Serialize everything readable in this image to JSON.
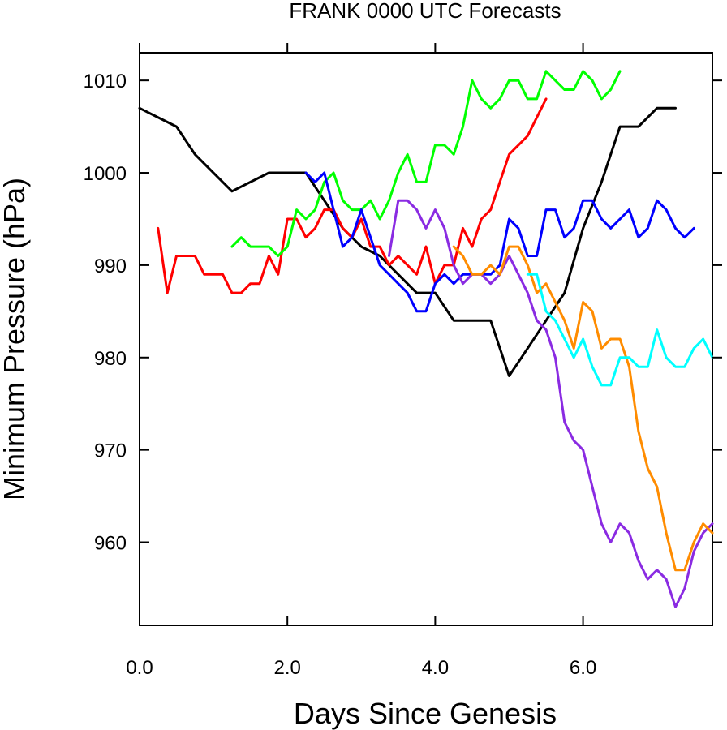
{
  "chart_data": {
    "type": "line",
    "title": "FRANK 0000 UTC Forecasts",
    "xlabel": "Days Since Genesis",
    "ylabel": "Minimum Pressure (hPa)",
    "xlim": [
      0,
      7.75
    ],
    "ylim": [
      951,
      1013
    ],
    "xticks": [
      0,
      2,
      4,
      6
    ],
    "xtick_labels": [
      "0.0",
      "2.0",
      "4.0",
      "6.0"
    ],
    "yticks": [
      960,
      970,
      980,
      990,
      1000,
      1010
    ],
    "ytick_labels": [
      "960",
      "970",
      "980",
      "990",
      "1000",
      "1010"
    ],
    "grid": false,
    "series": [
      {
        "name": "black",
        "color": "#000000",
        "x": [
          0,
          0.5,
          0.75,
          1.25,
          1.75,
          2.0,
          2.25,
          2.5,
          2.75,
          3.0,
          3.25,
          3.5,
          3.75,
          4.0,
          4.25,
          4.5,
          4.75,
          5.0,
          5.25,
          5.5,
          5.75,
          6.0,
          6.25,
          6.5,
          6.75,
          7.0,
          7.25
        ],
        "values": [
          1007,
          1005,
          1002,
          998,
          1000,
          1000,
          1000,
          997,
          994,
          992,
          991,
          989,
          987,
          987,
          984,
          984,
          984,
          978,
          981,
          984,
          987,
          994,
          999,
          1005,
          1005,
          1007,
          1007
        ]
      },
      {
        "name": "red",
        "color": "#ff0000",
        "x": [
          0.25,
          0.375,
          0.5,
          0.625,
          0.75,
          0.875,
          1.0,
          1.125,
          1.25,
          1.375,
          1.5,
          1.625,
          1.75,
          1.875,
          2.0,
          2.125,
          2.25,
          2.375,
          2.5,
          2.625,
          2.75,
          2.875,
          3.0,
          3.125,
          3.25,
          3.375,
          3.5,
          3.625,
          3.75,
          3.875,
          4.0,
          4.125,
          4.25,
          4.375,
          4.5,
          4.625,
          4.75,
          4.875,
          5.0,
          5.125,
          5.25,
          5.375,
          5.5
        ],
        "values": [
          994,
          987,
          991,
          991,
          991,
          989,
          989,
          989,
          987,
          987,
          988,
          988,
          991,
          989,
          995,
          995,
          993,
          994,
          996,
          996,
          994,
          993,
          995,
          992,
          992,
          990,
          991,
          990,
          989,
          992,
          988,
          990,
          990,
          994,
          992,
          995,
          996,
          999,
          1002,
          1003,
          1004,
          1006,
          1008
        ]
      },
      {
        "name": "green",
        "color": "#00ff00",
        "x": [
          1.25,
          1.375,
          1.5,
          1.625,
          1.75,
          1.875,
          2.0,
          2.125,
          2.25,
          2.375,
          2.5,
          2.625,
          2.75,
          2.875,
          3.0,
          3.125,
          3.25,
          3.375,
          3.5,
          3.625,
          3.75,
          3.875,
          4.0,
          4.125,
          4.25,
          4.375,
          4.5,
          4.625,
          4.75,
          4.875,
          5.0,
          5.125,
          5.25,
          5.375,
          5.5,
          5.625,
          5.75,
          5.875,
          6.0,
          6.125,
          6.25,
          6.375,
          6.5
        ],
        "values": [
          992,
          993,
          992,
          992,
          992,
          991,
          992,
          996,
          995,
          996,
          999,
          1000,
          997,
          996,
          996,
          997,
          995,
          997,
          1000,
          1002,
          999,
          999,
          1003,
          1003,
          1002,
          1005,
          1010,
          1008,
          1007,
          1008,
          1010,
          1010,
          1008,
          1008,
          1011,
          1010,
          1009,
          1009,
          1011,
          1010,
          1008,
          1009,
          1011
        ]
      },
      {
        "name": "blue",
        "color": "#0000ff",
        "x": [
          2.25,
          2.375,
          2.5,
          2.625,
          2.75,
          2.875,
          3.0,
          3.125,
          3.25,
          3.375,
          3.5,
          3.625,
          3.75,
          3.875,
          4.0,
          4.125,
          4.25,
          4.375,
          4.5,
          4.625,
          4.75,
          4.875,
          5.0,
          5.125,
          5.25,
          5.375,
          5.5,
          5.625,
          5.75,
          5.875,
          6.0,
          6.125,
          6.25,
          6.375,
          6.5,
          6.625,
          6.75,
          6.875,
          7.0,
          7.125,
          7.25,
          7.375,
          7.5
        ],
        "values": [
          1000,
          999,
          1000,
          996,
          992,
          993,
          996,
          993,
          990,
          989,
          988,
          987,
          985,
          985,
          988,
          989,
          988,
          989,
          989,
          989,
          989,
          990,
          995,
          994,
          991,
          991,
          996,
          996,
          993,
          994,
          997,
          997,
          995,
          994,
          995,
          996,
          993,
          994,
          997,
          996,
          994,
          993,
          994
        ]
      },
      {
        "name": "purple",
        "color": "#8a2be2",
        "x": [
          3.375,
          3.5,
          3.625,
          3.75,
          3.875,
          4.0,
          4.125,
          4.25,
          4.375,
          4.5,
          4.625,
          4.75,
          4.875,
          5.0,
          5.125,
          5.25,
          5.375,
          5.5,
          5.625,
          5.75,
          5.875,
          6.0,
          6.125,
          6.25,
          6.375,
          6.5,
          6.625,
          6.75,
          6.875,
          7.0,
          7.125,
          7.25,
          7.375,
          7.5,
          7.625,
          7.75
        ],
        "values": [
          991,
          997,
          997,
          996,
          994,
          996,
          994,
          990,
          988,
          989,
          989,
          988,
          989,
          991,
          989,
          987,
          984,
          983,
          980,
          973,
          971,
          970,
          966,
          962,
          960,
          962,
          961,
          958,
          956,
          957,
          956,
          953,
          955,
          959,
          961,
          962
        ]
      },
      {
        "name": "orange",
        "color": "#ff8c00",
        "x": [
          4.25,
          4.375,
          4.5,
          4.625,
          4.75,
          4.875,
          5.0,
          5.125,
          5.25,
          5.375,
          5.5,
          5.625,
          5.75,
          5.875,
          6.0,
          6.125,
          6.25,
          6.375,
          6.5,
          6.625,
          6.75,
          6.875,
          7.0,
          7.125,
          7.25,
          7.375,
          7.5,
          7.625,
          7.75
        ],
        "values": [
          992,
          991,
          989,
          989,
          990,
          989,
          992,
          992,
          990,
          987,
          988,
          986,
          984,
          981,
          986,
          985,
          981,
          982,
          982,
          979,
          972,
          968,
          966,
          961,
          957,
          957,
          960,
          962,
          961
        ]
      },
      {
        "name": "cyan",
        "color": "#00ffff",
        "x": [
          5.25,
          5.375,
          5.5,
          5.625,
          5.75,
          5.875,
          6.0,
          6.125,
          6.25,
          6.375,
          6.5,
          6.625,
          6.75,
          6.875,
          7.0,
          7.125,
          7.25,
          7.375,
          7.5,
          7.625,
          7.75
        ],
        "values": [
          989,
          989,
          985,
          984,
          982,
          980,
          982,
          979,
          977,
          977,
          980,
          980,
          979,
          979,
          983,
          980,
          979,
          979,
          981,
          982,
          980
        ]
      }
    ]
  }
}
